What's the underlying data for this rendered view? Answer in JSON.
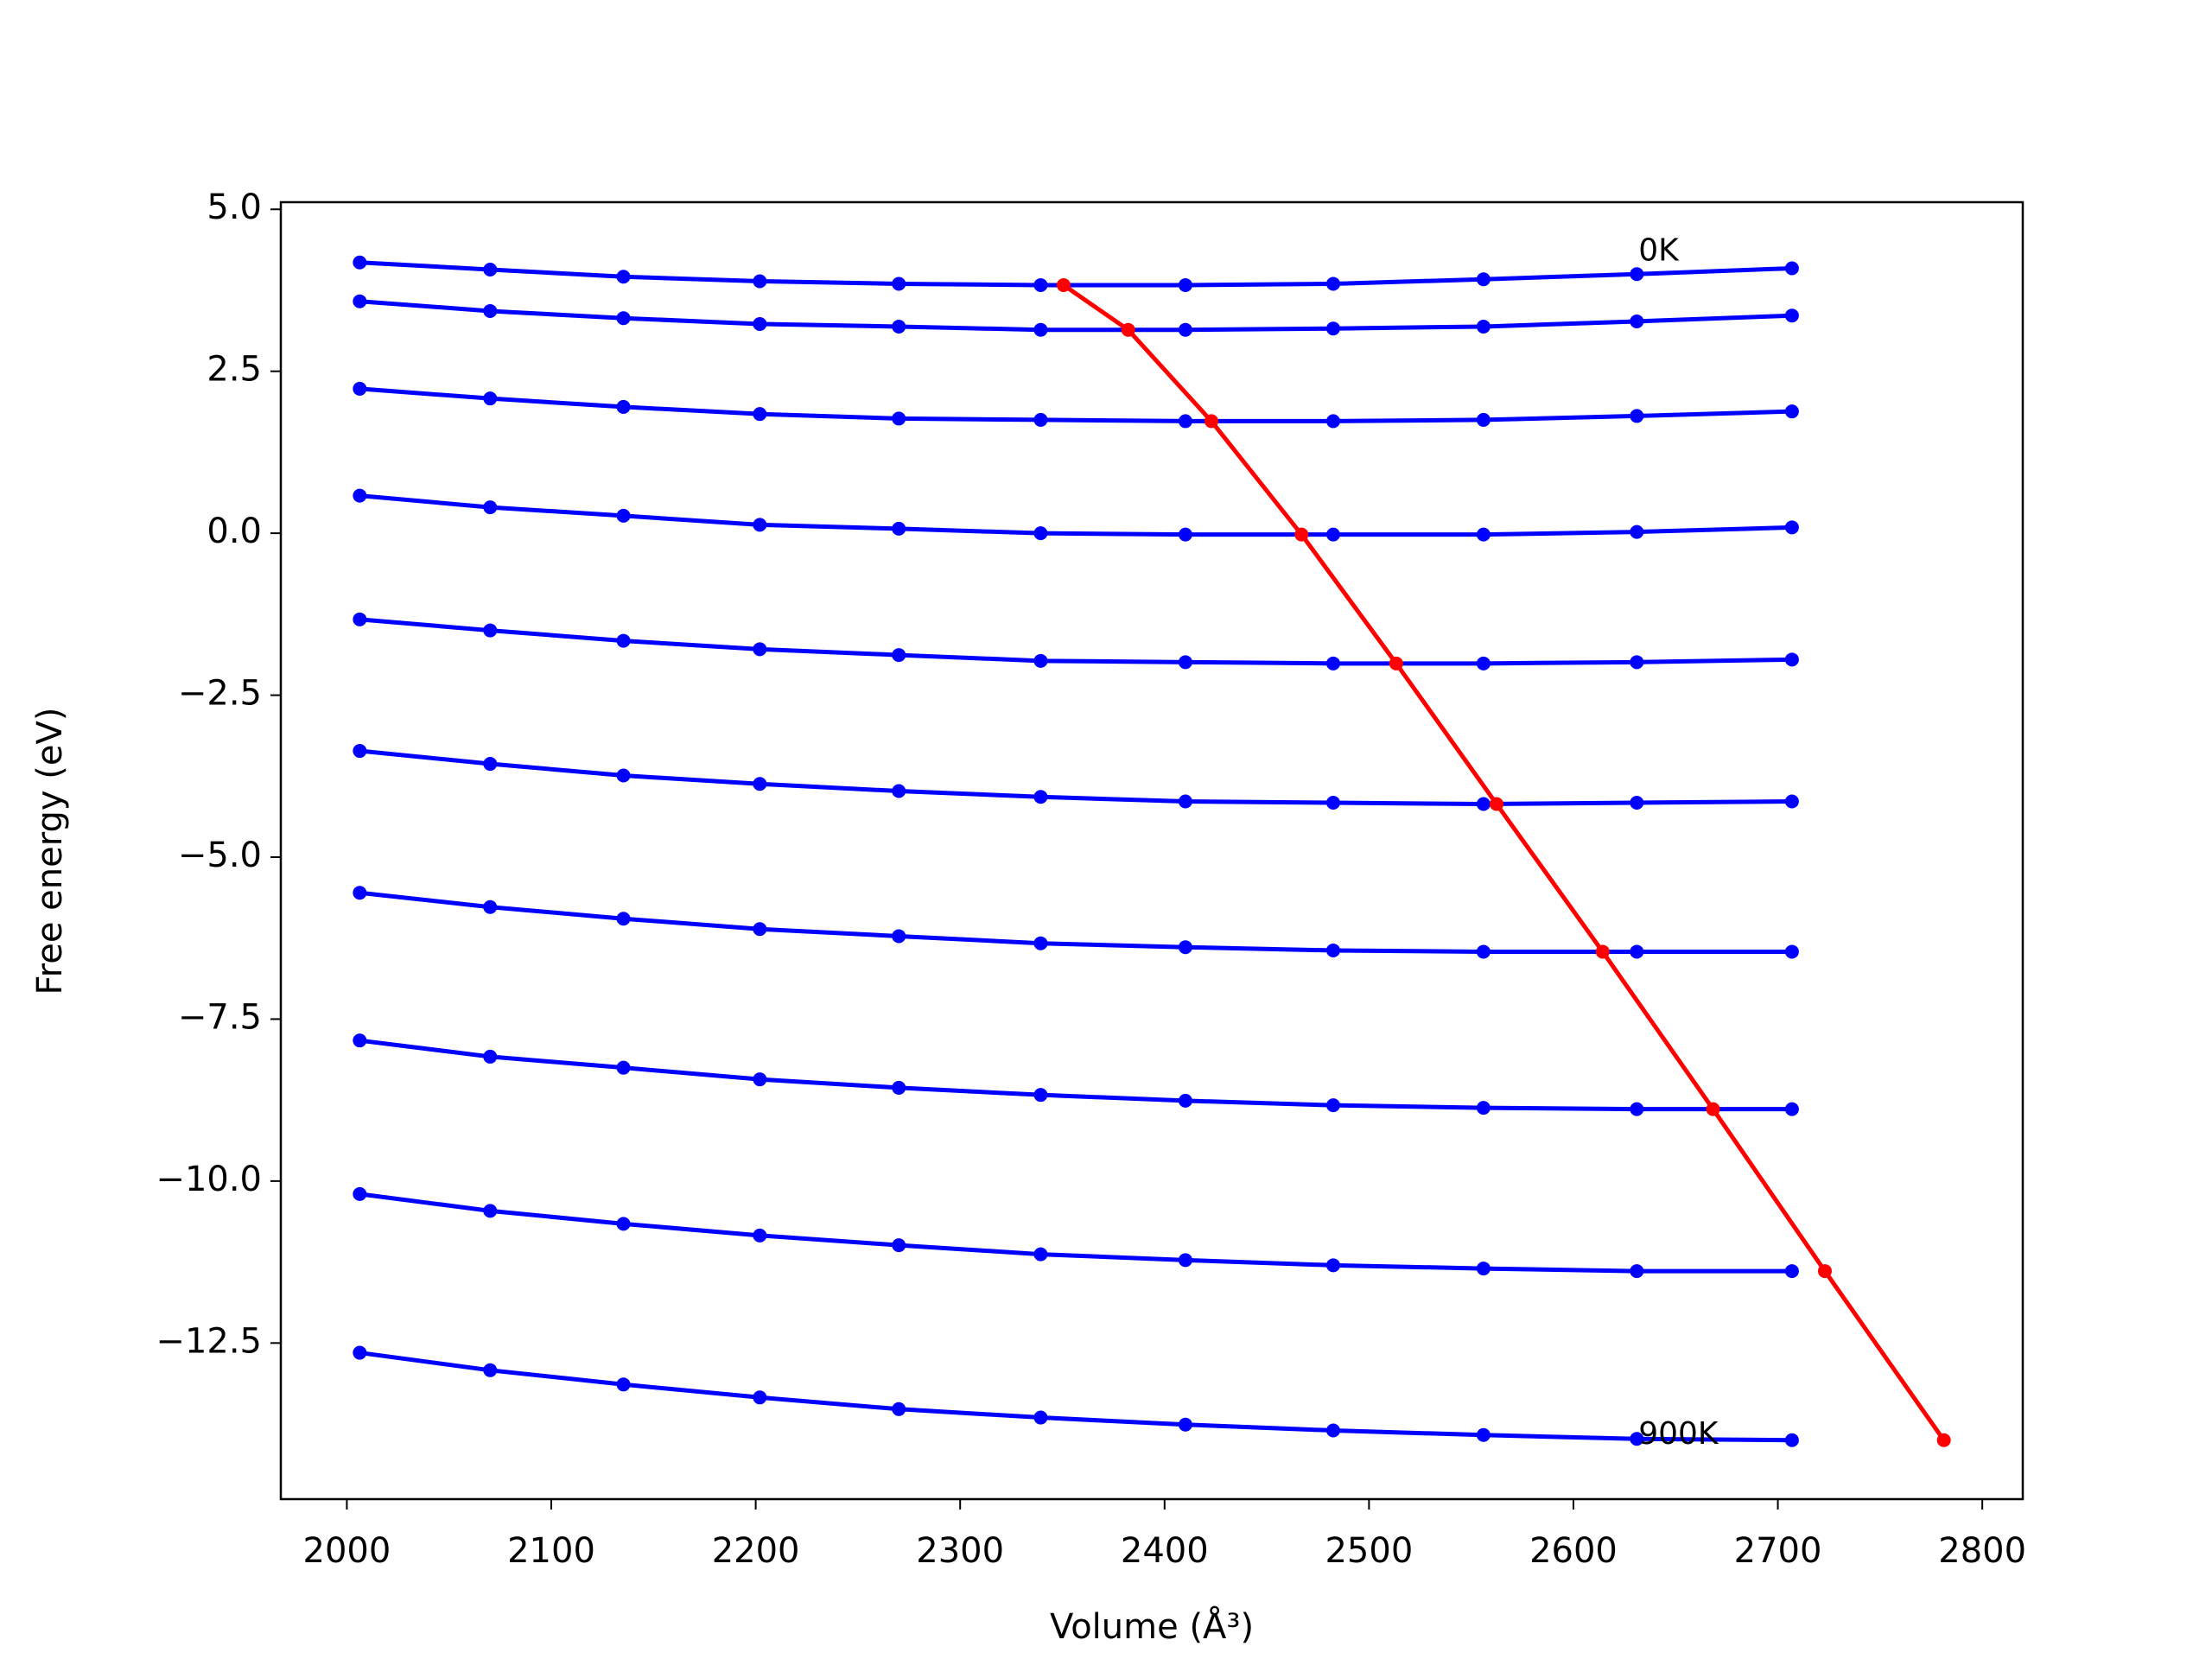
{
  "chart_data": {
    "type": "line",
    "xlabel": "Volume (Å³)",
    "ylabel": "Free energy (eV)",
    "x": [
      2006.3,
      2070.1,
      2135.3,
      2202,
      2270,
      2339.4,
      2410.2,
      2482.5,
      2556,
      2631,
      2706.9
    ],
    "series": [
      {
        "color": "#0000ff",
        "values": [
          4.18,
          4.07,
          3.96,
          3.89,
          3.85,
          3.83,
          3.83,
          3.85,
          3.92,
          4.0,
          4.09
        ]
      },
      {
        "color": "#0000ff",
        "values": [
          3.58,
          3.43,
          3.32,
          3.23,
          3.19,
          3.14,
          3.14,
          3.16,
          3.19,
          3.27,
          3.36
        ]
      },
      {
        "color": "#0000ff",
        "values": [
          2.23,
          2.08,
          1.95,
          1.84,
          1.77,
          1.75,
          1.73,
          1.73,
          1.75,
          1.81,
          1.88
        ]
      },
      {
        "color": "#0000ff",
        "values": [
          0.58,
          0.4,
          0.27,
          0.13,
          0.07,
          0.0,
          -0.02,
          -0.02,
          -0.02,
          0.02,
          0.09
        ]
      },
      {
        "color": "#0000ff",
        "values": [
          -1.33,
          -1.5,
          -1.66,
          -1.79,
          -1.88,
          -1.97,
          -1.99,
          -2.01,
          -2.01,
          -1.99,
          -1.95
        ]
      },
      {
        "color": "#0000ff",
        "values": [
          -3.36,
          -3.56,
          -3.74,
          -3.87,
          -3.98,
          -4.07,
          -4.14,
          -4.16,
          -4.18,
          -4.16,
          -4.14
        ]
      },
      {
        "color": "#0000ff",
        "values": [
          -5.55,
          -5.77,
          -5.95,
          -6.11,
          -6.22,
          -6.33,
          -6.39,
          -6.44,
          -6.46,
          -6.46,
          -6.46
        ]
      },
      {
        "color": "#0000ff",
        "values": [
          -7.83,
          -8.08,
          -8.25,
          -8.43,
          -8.56,
          -8.67,
          -8.76,
          -8.83,
          -8.87,
          -8.89,
          -8.89
        ]
      },
      {
        "color": "#0000ff",
        "values": [
          -10.2,
          -10.46,
          -10.66,
          -10.84,
          -10.99,
          -11.13,
          -11.22,
          -11.3,
          -11.35,
          -11.39,
          -11.39
        ]
      },
      {
        "color": "#0000ff",
        "values": [
          -12.65,
          -12.92,
          -13.14,
          -13.34,
          -13.52,
          -13.65,
          -13.76,
          -13.85,
          -13.92,
          -13.98,
          -14.0
        ]
      },
      {
        "color": "#ff0000",
        "x": [
          2350.6,
          2382.2,
          2422.9,
          2467,
          2513.3,
          2562.4,
          2614.3,
          2668.3,
          2723,
          2781.2
        ],
        "values": [
          3.83,
          3.14,
          1.73,
          -0.02,
          -2.01,
          -4.18,
          -6.46,
          -8.89,
          -11.39,
          -14.0
        ]
      }
    ],
    "annotations": [
      {
        "text": "0K",
        "x": 2631.8,
        "y": 4.34
      },
      {
        "text": "900K",
        "x": 2631.8,
        "y": -13.92
      }
    ],
    "xlim": [
      1967.7,
      2819.8
    ],
    "ylim": [
      -14.91,
      5.11
    ],
    "xticks": [
      2000,
      2100,
      2200,
      2300,
      2400,
      2500,
      2600,
      2700,
      2800
    ],
    "yticks": [
      {
        "value": 5,
        "label": "5.0"
      },
      2.5,
      {
        "value": 0,
        "label": "0.0"
      },
      {
        "value": -2.5,
        "label": "−2.5"
      },
      {
        "value": -5,
        "label": "−5.0"
      },
      {
        "value": -7.5,
        "label": "−7.5"
      },
      {
        "value": -10,
        "label": "−10.0"
      },
      {
        "value": -12.5,
        "label": "−12.5"
      }
    ],
    "grid": false
  }
}
